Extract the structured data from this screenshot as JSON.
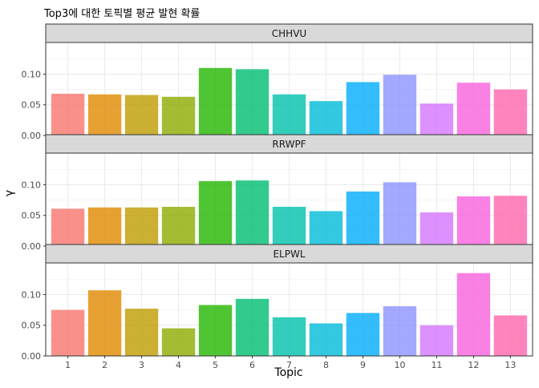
{
  "chart_data": {
    "type": "bar",
    "title": "Top3에 대한 토픽별 평균 발현 확률",
    "xlabel": "Topic",
    "ylabel": "γ",
    "categories": [
      "1",
      "2",
      "3",
      "4",
      "5",
      "6",
      "7",
      "8",
      "9",
      "10",
      "11",
      "12",
      "13"
    ],
    "ylim": [
      0,
      0.145
    ],
    "yticks": [
      0.0,
      0.05,
      0.1
    ],
    "ytick_labels": [
      "0.00",
      "0.05",
      "0.10"
    ],
    "grid": true,
    "legend": "none",
    "bar_colors": [
      "#F8766D",
      "#E18A00",
      "#BE9C00",
      "#8CAB00",
      "#24B700",
      "#00BE70",
      "#00C1AB",
      "#00BBDA",
      "#00ACFC",
      "#8B93FF",
      "#D575FE",
      "#F962DD",
      "#FF65AC"
    ],
    "panels": [
      {
        "name": "CHHVU",
        "values": [
          0.068,
          0.067,
          0.066,
          0.063,
          0.11,
          0.108,
          0.067,
          0.056,
          0.087,
          0.099,
          0.052,
          0.086,
          0.075
        ]
      },
      {
        "name": "RRWPF",
        "values": [
          0.061,
          0.063,
          0.063,
          0.064,
          0.106,
          0.107,
          0.064,
          0.057,
          0.089,
          0.104,
          0.055,
          0.081,
          0.082
        ]
      },
      {
        "name": "ELPWL",
        "values": [
          0.075,
          0.107,
          0.077,
          0.045,
          0.083,
          0.093,
          0.063,
          0.053,
          0.07,
          0.081,
          0.05,
          0.135,
          0.066
        ]
      }
    ]
  }
}
